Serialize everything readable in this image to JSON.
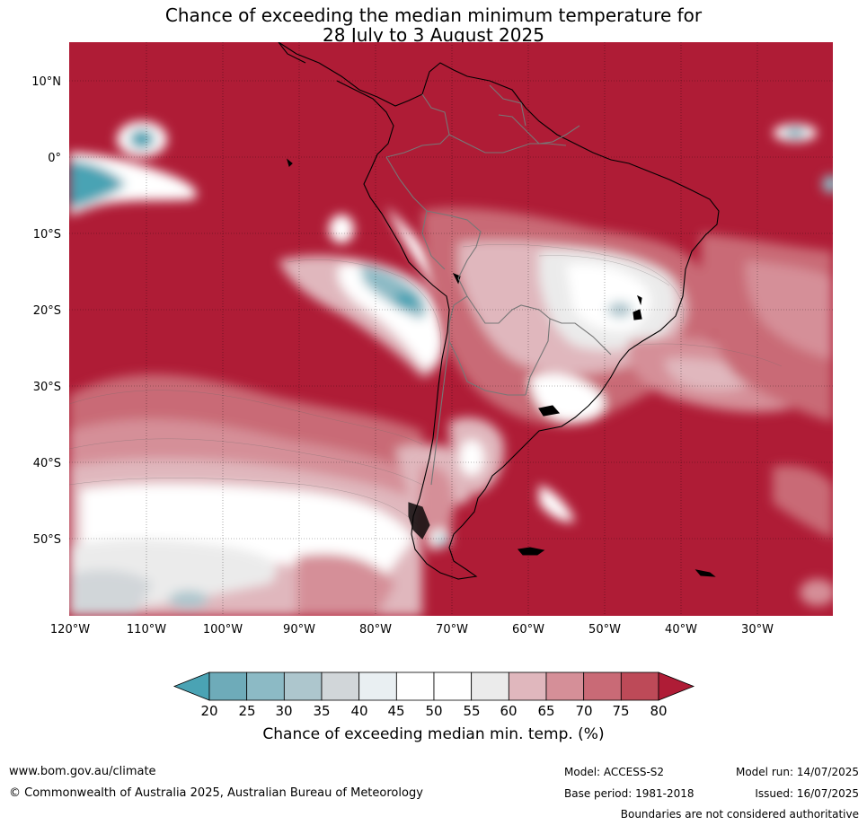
{
  "title": {
    "line1": "Chance of exceeding the median minimum temperature for",
    "line2": "28 July to 3 August 2025"
  },
  "map": {
    "lat_labels": [
      "10°N",
      "0°",
      "10°S",
      "20°S",
      "30°S",
      "40°S",
      "50°S"
    ],
    "lon_labels": [
      "120°W",
      "110°W",
      "100°W",
      "90°W",
      "80°W",
      "70°W",
      "60°W",
      "50°W",
      "40°W",
      "30°W"
    ]
  },
  "colorbar": {
    "ticks": [
      "20",
      "25",
      "30",
      "35",
      "40",
      "45",
      "50",
      "55",
      "60",
      "65",
      "70",
      "75",
      "80"
    ],
    "colors": [
      "#4aa3b4",
      "#6eabb9",
      "#8cbac5",
      "#adc6cd",
      "#d1d6d9",
      "#e9eff2",
      "#ffffff",
      "#ffffff",
      "#ebebeb",
      "#e0b7bd",
      "#d58f98",
      "#c96a76",
      "#bd4a58",
      "#af1c36"
    ],
    "label": "Chance of exceeding median min. temp. (%)"
  },
  "footer": {
    "website": "www.bom.gov.au/climate",
    "copyright": "© Commonwealth of Australia 2025, Australian Bureau of Meteorology",
    "model": "Model: ACCESS-S2",
    "base_period": "Base period: 1981-2018",
    "model_run": "Model run: 14/07/2025",
    "issued": "Issued: 16/07/2025",
    "disclaimer": "Boundaries are not considered authoritative"
  }
}
